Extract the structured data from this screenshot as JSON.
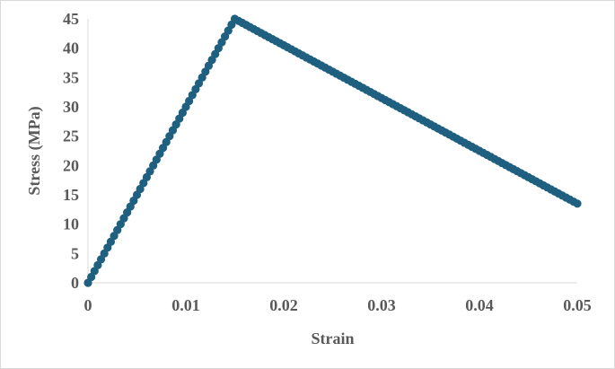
{
  "chart_data": {
    "type": "scatter",
    "title": "",
    "xlabel": "Strain",
    "ylabel": "Stress (MPa)",
    "xlim": [
      0,
      0.05
    ],
    "ylim": [
      0,
      45
    ],
    "xticks": [
      "0",
      "0.01",
      "0.02",
      "0.03",
      "0.04",
      "0.05"
    ],
    "yticks": [
      "0",
      "5",
      "10",
      "15",
      "20",
      "25",
      "30",
      "35",
      "40",
      "45"
    ],
    "grid": false,
    "legend": "none",
    "marker_color": "#1f5f80",
    "series": [
      {
        "linear_segment": {
          "x_start": 0,
          "x_end": 0.015,
          "y_start": 0,
          "y_end": 45,
          "points": 46
        },
        "softening_segment": {
          "x_start": 0.015,
          "x_end": 0.05,
          "y_start": 45,
          "y_end": 13.5,
          "points": 92
        }
      }
    ]
  }
}
